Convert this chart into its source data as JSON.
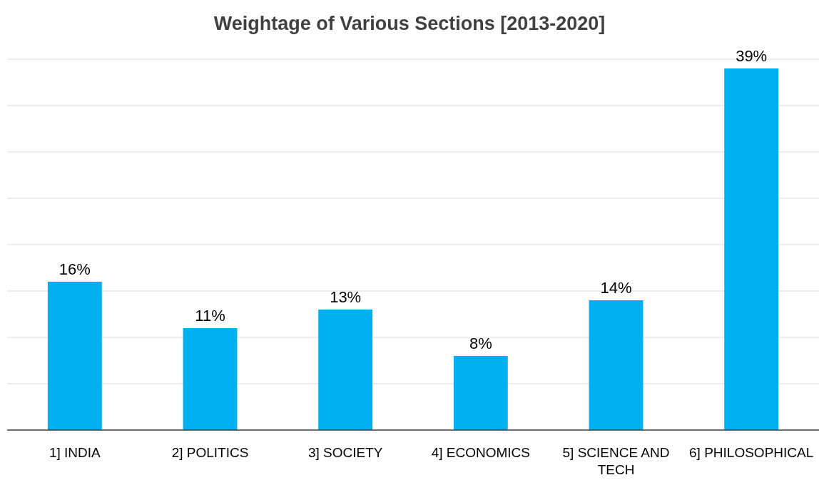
{
  "chart_data": {
    "type": "bar",
    "title": "Weightage of Various Sections [2013-2020]",
    "categories": [
      "1] INDIA",
      "2] POLITICS",
      "3] SOCIETY",
      "4] ECONOMICS",
      "5] SCIENCE AND TECH",
      "6] PHILOSOPHICAL"
    ],
    "values": [
      16,
      11,
      13,
      8,
      14,
      39
    ],
    "color": "#00b0f0",
    "value_labels": [
      "16%",
      "11%",
      "13%",
      "8%",
      "14%",
      "39%"
    ],
    "ylim": [
      0,
      40
    ],
    "yticks": [
      {
        "value": 0,
        "label": null
      },
      {
        "value": 5,
        "label": null
      },
      {
        "value": 10,
        "label": null
      },
      {
        "value": 15,
        "label": null
      },
      {
        "value": 20,
        "label": null
      },
      {
        "value": 25,
        "label": null
      },
      {
        "value": 30,
        "label": null
      },
      {
        "value": 35,
        "label": null
      },
      {
        "value": 40,
        "label": null
      }
    ],
    "grid": "y",
    "tick_labels": "x"
  }
}
